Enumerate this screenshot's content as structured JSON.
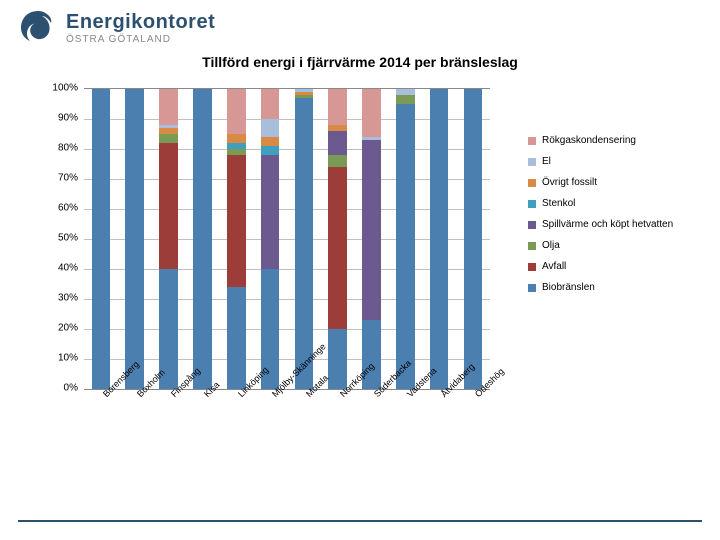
{
  "brand": {
    "main": "Energikontoret",
    "sub": "ÖSTRA GÖTALAND"
  },
  "title": "Tillförd energi i fjärrvärme 2014 per bränsleslag",
  "chart": {
    "type": "stacked-bar",
    "ylim": [
      0,
      100
    ],
    "ytick_step": 10,
    "ylabels": [
      "0%",
      "10%",
      "20%",
      "30%",
      "40%",
      "50%",
      "60%",
      "70%",
      "80%",
      "90%",
      "100%"
    ],
    "background_color": "#ffffff",
    "grid_color": "#c0c0c0",
    "bar_width": 0.55,
    "categories": [
      "Borensberg",
      "Boxholm",
      "Finspång",
      "Kisa",
      "Linköping",
      "Mjölby-Skänninge",
      "Motala",
      "Norrköping",
      "Söderbacka",
      "Vadstena",
      "Åtvidaberg",
      "Ödeshög"
    ],
    "series": [
      {
        "key": "biobranslen",
        "label": "Biobränslen",
        "color": "#4a7fb0"
      },
      {
        "key": "avfall",
        "label": "Avfall",
        "color": "#9c3d3a"
      },
      {
        "key": "olja",
        "label": "Olja",
        "color": "#7a9a55"
      },
      {
        "key": "spillvarme",
        "label": "Spillvärme och köpt hetvatten",
        "color": "#6b598f"
      },
      {
        "key": "stenkol",
        "label": "Stenkol",
        "color": "#3e9fbf"
      },
      {
        "key": "ovrigt_fossilt",
        "label": "Övrigt fossilt",
        "color": "#d98b45"
      },
      {
        "key": "el",
        "label": "El",
        "color": "#a8bedb"
      },
      {
        "key": "rokgas",
        "label": "Rökgaskondensering",
        "color": "#d79795"
      }
    ],
    "legend_order": [
      "rokgas",
      "el",
      "ovrigt_fossilt",
      "stenkol",
      "spillvarme",
      "olja",
      "avfall",
      "biobranslen"
    ],
    "data": [
      {
        "biobranslen": 100,
        "avfall": 0,
        "olja": 0,
        "spillvarme": 0,
        "stenkol": 0,
        "ovrigt_fossilt": 0,
        "el": 0,
        "rokgas": 0
      },
      {
        "biobranslen": 100,
        "avfall": 0,
        "olja": 0,
        "spillvarme": 0,
        "stenkol": 0,
        "ovrigt_fossilt": 0,
        "el": 0,
        "rokgas": 0
      },
      {
        "biobranslen": 40,
        "avfall": 42,
        "olja": 3,
        "spillvarme": 0,
        "stenkol": 0,
        "ovrigt_fossilt": 2,
        "el": 1,
        "rokgas": 12
      },
      {
        "biobranslen": 100,
        "avfall": 0,
        "olja": 0,
        "spillvarme": 0,
        "stenkol": 0,
        "ovrigt_fossilt": 0,
        "el": 0,
        "rokgas": 0
      },
      {
        "biobranslen": 34,
        "avfall": 44,
        "olja": 2,
        "spillvarme": 0,
        "stenkol": 2,
        "ovrigt_fossilt": 3,
        "el": 0,
        "rokgas": 15
      },
      {
        "biobranslen": 40,
        "avfall": 0,
        "olja": 0,
        "spillvarme": 38,
        "stenkol": 3,
        "ovrigt_fossilt": 3,
        "el": 6,
        "rokgas": 10
      },
      {
        "biobranslen": 97,
        "avfall": 0,
        "olja": 1,
        "spillvarme": 0,
        "stenkol": 0,
        "ovrigt_fossilt": 1,
        "el": 1,
        "rokgas": 0
      },
      {
        "biobranslen": 20,
        "avfall": 54,
        "olja": 4,
        "spillvarme": 8,
        "stenkol": 0,
        "ovrigt_fossilt": 2,
        "el": 0,
        "rokgas": 12
      },
      {
        "biobranslen": 23,
        "avfall": 0,
        "olja": 0,
        "spillvarme": 60,
        "stenkol": 0,
        "ovrigt_fossilt": 0,
        "el": 1,
        "rokgas": 16
      },
      {
        "biobranslen": 95,
        "avfall": 0,
        "olja": 3,
        "spillvarme": 0,
        "stenkol": 0,
        "ovrigt_fossilt": 0,
        "el": 2,
        "rokgas": 0
      },
      {
        "biobranslen": 100,
        "avfall": 0,
        "olja": 0,
        "spillvarme": 0,
        "stenkol": 0,
        "ovrigt_fossilt": 0,
        "el": 0,
        "rokgas": 0
      },
      {
        "biobranslen": 100,
        "avfall": 0,
        "olja": 0,
        "spillvarme": 0,
        "stenkol": 0,
        "ovrigt_fossilt": 0,
        "el": 0,
        "rokgas": 0
      }
    ]
  }
}
